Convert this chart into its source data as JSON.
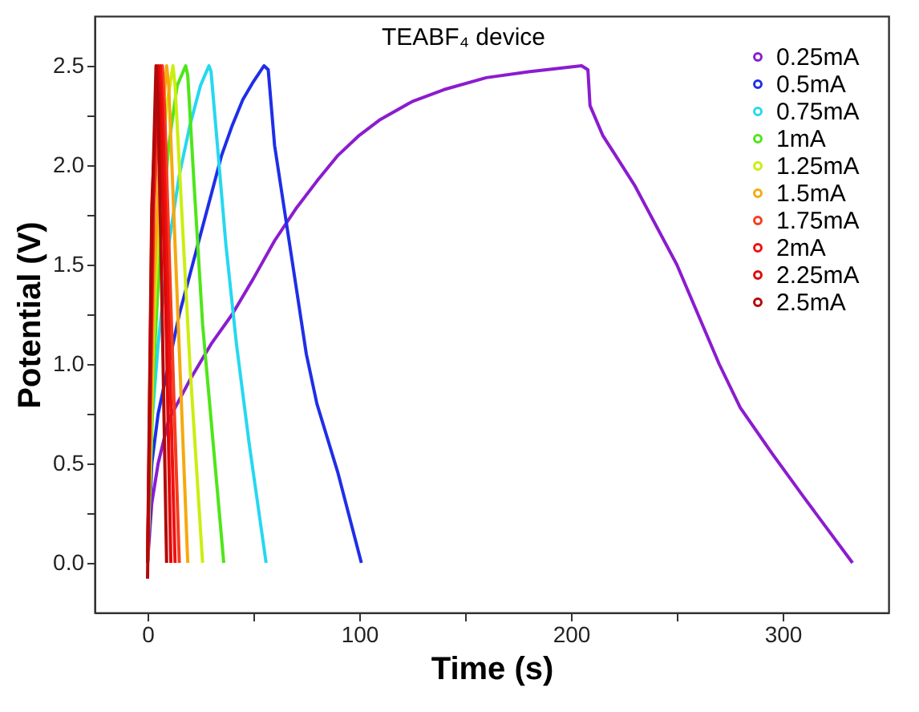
{
  "chart_data": {
    "type": "line",
    "xlabel": "Time (s)",
    "ylabel": "Potential (V)",
    "annotations": [
      "TEABF₄ device"
    ],
    "xlim": [
      -25,
      350
    ],
    "xticks": [
      0,
      {
        "value": 50,
        "label": null
      },
      100,
      {
        "value": 150,
        "label": null
      },
      200,
      {
        "value": 250,
        "label": null
      },
      300
    ],
    "ylim": [
      -0.25,
      2.75
    ],
    "yticks": [
      {
        "value": 0,
        "label": "0.0"
      },
      {
        "value": 0.25,
        "label": null
      },
      0.5,
      {
        "value": 0.75,
        "label": null
      },
      {
        "value": 1,
        "label": "1.0"
      },
      {
        "value": 1.25,
        "label": null
      },
      1.5,
      {
        "value": 1.75,
        "label": null
      },
      {
        "value": 2,
        "label": "2.0"
      },
      {
        "value": 2.25,
        "label": null
      },
      2.5
    ],
    "grid": false,
    "legend": "top right",
    "marker": "none",
    "line_style": "solid",
    "series": [
      {
        "name": "0.25mA",
        "color": "#8b1ccf",
        "x": [
          0,
          2,
          5,
          10,
          20,
          30,
          40,
          50,
          60,
          70,
          80,
          90,
          100,
          110,
          125,
          140,
          160,
          180,
          205,
          208,
          209,
          215,
          230,
          250,
          260,
          270,
          280,
          295,
          310,
          333
        ],
        "values": [
          0,
          0.3,
          0.5,
          0.72,
          0.92,
          1.1,
          1.25,
          1.43,
          1.62,
          1.78,
          1.92,
          2.05,
          2.15,
          2.23,
          2.32,
          2.38,
          2.44,
          2.47,
          2.5,
          2.48,
          2.3,
          2.15,
          1.9,
          1.5,
          1.25,
          1.0,
          0.78,
          0.55,
          0.33,
          0
        ]
      },
      {
        "name": "0.5mA",
        "color": "#1f2ee8",
        "x": [
          0,
          2,
          5,
          10,
          15,
          20,
          25,
          30,
          35,
          40,
          45,
          50,
          55,
          57,
          60,
          65,
          70,
          75,
          80,
          90,
          101
        ],
        "values": [
          0,
          0.5,
          0.75,
          1.0,
          1.25,
          1.45,
          1.65,
          1.85,
          2.05,
          2.2,
          2.33,
          2.42,
          2.5,
          2.48,
          2.1,
          1.75,
          1.4,
          1.05,
          0.8,
          0.45,
          0
        ]
      },
      {
        "name": "0.75mA",
        "color": "#25d8f0",
        "x": [
          0,
          2,
          5,
          10,
          15,
          20,
          25,
          29,
          30,
          33,
          37,
          42,
          48,
          56
        ],
        "values": [
          0,
          0.7,
          1.1,
          1.6,
          1.95,
          2.2,
          2.4,
          2.5,
          2.47,
          2.1,
          1.6,
          1.1,
          0.6,
          0
        ]
      },
      {
        "name": "1mA",
        "color": "#4ee619",
        "x": [
          0,
          3,
          6,
          10,
          14,
          18,
          19,
          22,
          26,
          31,
          36
        ],
        "values": [
          0,
          1.0,
          1.6,
          2.1,
          2.4,
          2.5,
          2.45,
          1.9,
          1.2,
          0.6,
          0
        ]
      },
      {
        "name": "1.25mA",
        "color": "#cbee10",
        "x": [
          0,
          3,
          6,
          9,
          12,
          13,
          16,
          20,
          26
        ],
        "values": [
          0,
          1.2,
          1.9,
          2.3,
          2.5,
          2.4,
          1.8,
          1.0,
          0
        ]
      },
      {
        "name": "1.5mA",
        "color": "#f5a90f",
        "x": [
          0,
          3,
          6,
          9,
          10,
          13,
          16,
          19
        ],
        "values": [
          0,
          1.4,
          2.1,
          2.5,
          2.4,
          1.6,
          0.8,
          0
        ]
      },
      {
        "name": "1.75mA",
        "color": "#f53d1f",
        "x": [
          0,
          3,
          6,
          7,
          8,
          11,
          15
        ],
        "values": [
          0,
          1.8,
          2.4,
          2.5,
          2.3,
          1.3,
          0
        ]
      },
      {
        "name": "2mA",
        "color": "#f01010",
        "x": [
          0,
          3,
          6,
          7,
          10,
          13
        ],
        "values": [
          0,
          2.0,
          2.5,
          2.3,
          1.2,
          0
        ]
      },
      {
        "name": "2.25mA",
        "color": "#e00808",
        "x": [
          0,
          2,
          5,
          6,
          9,
          11
        ],
        "values": [
          0,
          1.8,
          2.5,
          2.3,
          1.1,
          0
        ]
      },
      {
        "name": "2.5mA",
        "color": "#b00a0a",
        "x": [
          0,
          2,
          4,
          5,
          7,
          9
        ],
        "values": [
          -0.08,
          1.7,
          2.5,
          2.3,
          1.2,
          0
        ]
      }
    ]
  }
}
